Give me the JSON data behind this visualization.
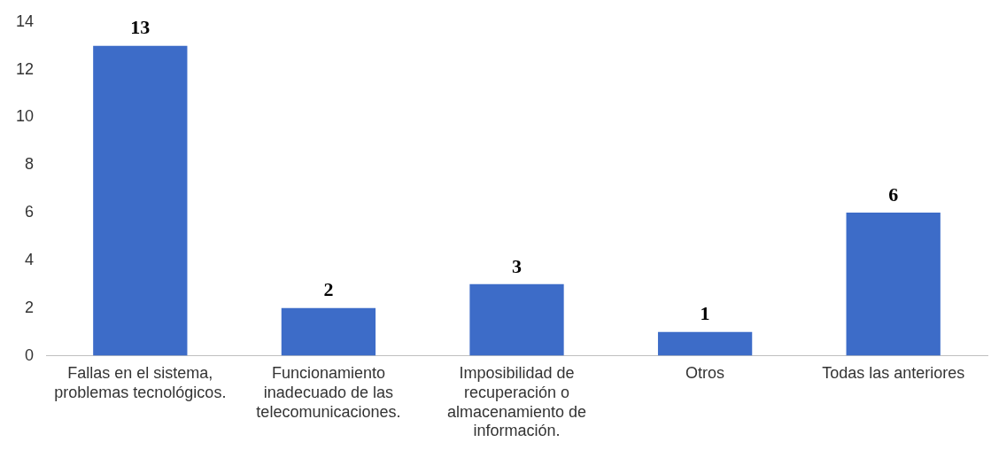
{
  "chart_data": {
    "type": "bar",
    "categories": [
      "Fallas en el sistema, problemas tecnológicos.",
      "Funcionamiento inadecuado de las telecomunicaciones.",
      "Imposibilidad de recuperación o almacenamiento de información.",
      "Otros",
      "Todas las anteriores"
    ],
    "values": [
      13,
      2,
      3,
      1,
      6
    ],
    "color": "#3d6cc8",
    "ylim": [
      0,
      14
    ],
    "yticks": [
      0,
      2,
      4,
      6,
      8,
      10,
      12,
      14
    ],
    "grid": false,
    "legend": false,
    "data_labels": true
  }
}
